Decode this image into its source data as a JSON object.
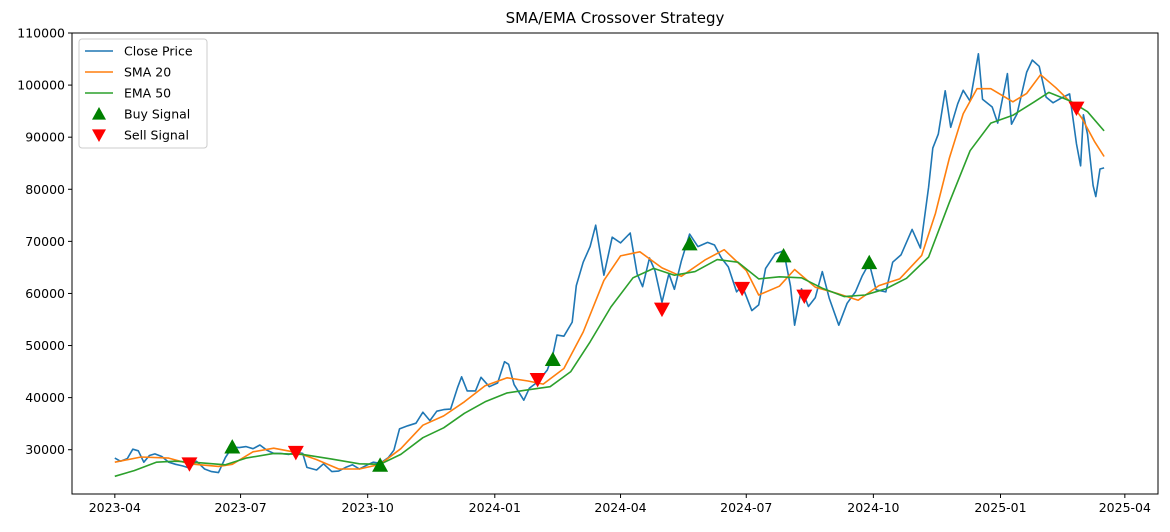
{
  "chart_data": {
    "type": "line",
    "title": "SMA/EMA Crossover Strategy",
    "xlabel": "",
    "ylabel": "",
    "x_range": [
      "2023-03-01",
      "2025-04-25"
    ],
    "ylim": [
      21500,
      110000
    ],
    "x_ticks": [
      "2023-04",
      "2023-07",
      "2023-10",
      "2024-01",
      "2024-04",
      "2024-07",
      "2024-10",
      "2025-01",
      "2025-04"
    ],
    "y_ticks": [
      30000,
      40000,
      50000,
      60000,
      70000,
      80000,
      90000,
      100000,
      110000
    ],
    "grid": false,
    "legend_position": "top-left",
    "legend": [
      "Close Price",
      "SMA 20",
      "EMA 50",
      "Buy Signal",
      "Sell Signal"
    ],
    "series": [
      {
        "name": "Close Price",
        "color": "#1f77b4",
        "points": [
          [
            "2023-04-01",
            28400
          ],
          [
            "2023-04-05",
            27800
          ],
          [
            "2023-04-10",
            28300
          ],
          [
            "2023-04-14",
            30100
          ],
          [
            "2023-04-18",
            29800
          ],
          [
            "2023-04-22",
            27600
          ],
          [
            "2023-04-26",
            28900
          ],
          [
            "2023-04-30",
            29200
          ],
          [
            "2023-05-05",
            28700
          ],
          [
            "2023-05-10",
            27600
          ],
          [
            "2023-05-15",
            27200
          ],
          [
            "2023-05-20",
            26900
          ],
          [
            "2023-05-25",
            26500
          ],
          [
            "2023-05-30",
            27800
          ],
          [
            "2023-06-05",
            26300
          ],
          [
            "2023-06-10",
            25800
          ],
          [
            "2023-06-15",
            25600
          ],
          [
            "2023-06-20",
            28500
          ],
          [
            "2023-06-25",
            30500
          ],
          [
            "2023-06-30",
            30400
          ],
          [
            "2023-07-05",
            30600
          ],
          [
            "2023-07-10",
            30200
          ],
          [
            "2023-07-15",
            30900
          ],
          [
            "2023-07-20",
            29900
          ],
          [
            "2023-07-25",
            29300
          ],
          [
            "2023-07-30",
            29300
          ],
          [
            "2023-08-05",
            29100
          ],
          [
            "2023-08-10",
            29500
          ],
          [
            "2023-08-15",
            29300
          ],
          [
            "2023-08-18",
            26600
          ],
          [
            "2023-08-25",
            26100
          ],
          [
            "2023-08-30",
            27300
          ],
          [
            "2023-09-05",
            25800
          ],
          [
            "2023-09-10",
            25900
          ],
          [
            "2023-09-15",
            26600
          ],
          [
            "2023-09-20",
            27100
          ],
          [
            "2023-09-25",
            26300
          ],
          [
            "2023-09-30",
            27000
          ],
          [
            "2023-10-05",
            27600
          ],
          [
            "2023-10-10",
            27400
          ],
          [
            "2023-10-16",
            28500
          ],
          [
            "2023-10-20",
            29900
          ],
          [
            "2023-10-24",
            34000
          ],
          [
            "2023-10-30",
            34600
          ],
          [
            "2023-11-05",
            35100
          ],
          [
            "2023-11-10",
            37200
          ],
          [
            "2023-11-15",
            35600
          ],
          [
            "2023-11-20",
            37400
          ],
          [
            "2023-11-25",
            37700
          ],
          [
            "2023-11-30",
            37800
          ],
          [
            "2023-12-05",
            41900
          ],
          [
            "2023-12-08",
            44000
          ],
          [
            "2023-12-12",
            41300
          ],
          [
            "2023-12-18",
            41300
          ],
          [
            "2023-12-22",
            43900
          ],
          [
            "2023-12-28",
            42100
          ],
          [
            "2024-01-03",
            42800
          ],
          [
            "2024-01-08",
            46900
          ],
          [
            "2024-01-11",
            46400
          ],
          [
            "2024-01-15",
            42500
          ],
          [
            "2024-01-22",
            39500
          ],
          [
            "2024-01-26",
            41800
          ],
          [
            "2024-02-01",
            43000
          ],
          [
            "2024-02-08",
            45300
          ],
          [
            "2024-02-12",
            48200
          ],
          [
            "2024-02-15",
            52000
          ],
          [
            "2024-02-20",
            51800
          ],
          [
            "2024-02-26",
            54500
          ],
          [
            "2024-02-29",
            61500
          ],
          [
            "2024-03-05",
            66000
          ],
          [
            "2024-03-10",
            69000
          ],
          [
            "2024-03-14",
            73100
          ],
          [
            "2024-03-20",
            63500
          ],
          [
            "2024-03-26",
            70800
          ],
          [
            "2024-04-01",
            69700
          ],
          [
            "2024-04-08",
            71600
          ],
          [
            "2024-04-13",
            63800
          ],
          [
            "2024-04-17",
            61300
          ],
          [
            "2024-04-22",
            66800
          ],
          [
            "2024-04-26",
            64300
          ],
          [
            "2024-05-01",
            58300
          ],
          [
            "2024-05-06",
            63800
          ],
          [
            "2024-05-10",
            60800
          ],
          [
            "2024-05-15",
            66200
          ],
          [
            "2024-05-21",
            71400
          ],
          [
            "2024-05-27",
            69000
          ],
          [
            "2024-06-03",
            69800
          ],
          [
            "2024-06-08",
            69300
          ],
          [
            "2024-06-13",
            66800
          ],
          [
            "2024-06-18",
            65100
          ],
          [
            "2024-06-24",
            60300
          ],
          [
            "2024-06-28",
            61500
          ],
          [
            "2024-07-05",
            56700
          ],
          [
            "2024-07-10",
            57800
          ],
          [
            "2024-07-15",
            64800
          ],
          [
            "2024-07-22",
            67600
          ],
          [
            "2024-07-28",
            68200
          ],
          [
            "2024-08-02",
            61400
          ],
          [
            "2024-08-05",
            53900
          ],
          [
            "2024-08-10",
            60900
          ],
          [
            "2024-08-15",
            57500
          ],
          [
            "2024-08-20",
            59200
          ],
          [
            "2024-08-25",
            64200
          ],
          [
            "2024-08-30",
            59100
          ],
          [
            "2024-09-06",
            53900
          ],
          [
            "2024-09-12",
            58100
          ],
          [
            "2024-09-18",
            60300
          ],
          [
            "2024-09-23",
            63400
          ],
          [
            "2024-09-28",
            65800
          ],
          [
            "2024-10-03",
            60700
          ],
          [
            "2024-10-10",
            60300
          ],
          [
            "2024-10-15",
            66000
          ],
          [
            "2024-10-21",
            67400
          ],
          [
            "2024-10-29",
            72300
          ],
          [
            "2024-11-04",
            68700
          ],
          [
            "2024-11-10",
            80400
          ],
          [
            "2024-11-13",
            87900
          ],
          [
            "2024-11-17",
            90600
          ],
          [
            "2024-11-22",
            98900
          ],
          [
            "2024-11-26",
            91900
          ],
          [
            "2024-12-01",
            96400
          ],
          [
            "2024-12-05",
            99000
          ],
          [
            "2024-12-10",
            96900
          ],
          [
            "2024-12-16",
            106000
          ],
          [
            "2024-12-19",
            97300
          ],
          [
            "2024-12-26",
            95800
          ],
          [
            "2024-12-30",
            92700
          ],
          [
            "2025-01-06",
            102200
          ],
          [
            "2025-01-09",
            92500
          ],
          [
            "2025-01-13",
            94500
          ],
          [
            "2025-01-20",
            102500
          ],
          [
            "2025-01-24",
            104800
          ],
          [
            "2025-01-29",
            103600
          ],
          [
            "2025-02-03",
            97700
          ],
          [
            "2025-02-08",
            96600
          ],
          [
            "2025-02-14",
            97500
          ],
          [
            "2025-02-20",
            98300
          ],
          [
            "2025-02-25",
            88700
          ],
          [
            "2025-02-28",
            84500
          ],
          [
            "2025-03-02",
            94300
          ],
          [
            "2025-03-05",
            90600
          ],
          [
            "2025-03-09",
            80700
          ],
          [
            "2025-03-11",
            78600
          ],
          [
            "2025-03-14",
            83900
          ],
          [
            "2025-03-17",
            84100
          ]
        ]
      },
      {
        "name": "SMA 20",
        "color": "#ff7f0e",
        "points": [
          [
            "2023-04-01",
            27600
          ],
          [
            "2023-04-20",
            28600
          ],
          [
            "2023-05-10",
            28400
          ],
          [
            "2023-05-25",
            27300
          ],
          [
            "2023-06-15",
            26800
          ],
          [
            "2023-06-25",
            27200
          ],
          [
            "2023-07-10",
            29600
          ],
          [
            "2023-07-25",
            30300
          ],
          [
            "2023-08-10",
            29500
          ],
          [
            "2023-08-25",
            28100
          ],
          [
            "2023-09-10",
            26300
          ],
          [
            "2023-09-25",
            26300
          ],
          [
            "2023-10-10",
            27200
          ],
          [
            "2023-10-25",
            30200
          ],
          [
            "2023-11-10",
            34700
          ],
          [
            "2023-11-25",
            36500
          ],
          [
            "2023-12-10",
            39200
          ],
          [
            "2023-12-25",
            42300
          ],
          [
            "2024-01-10",
            43800
          ],
          [
            "2024-01-25",
            43200
          ],
          [
            "2024-02-05",
            42600
          ],
          [
            "2024-02-20",
            45600
          ],
          [
            "2024-03-05",
            52600
          ],
          [
            "2024-03-20",
            62500
          ],
          [
            "2024-04-01",
            67200
          ],
          [
            "2024-04-15",
            68000
          ],
          [
            "2024-05-01",
            64900
          ],
          [
            "2024-05-15",
            63300
          ],
          [
            "2024-06-01",
            66400
          ],
          [
            "2024-06-15",
            68400
          ],
          [
            "2024-07-01",
            64400
          ],
          [
            "2024-07-10",
            59700
          ],
          [
            "2024-07-25",
            61400
          ],
          [
            "2024-08-05",
            64600
          ],
          [
            "2024-08-20",
            61200
          ],
          [
            "2024-09-05",
            60000
          ],
          [
            "2024-09-20",
            58700
          ],
          [
            "2024-10-05",
            61500
          ],
          [
            "2024-10-20",
            62800
          ],
          [
            "2024-11-05",
            67300
          ],
          [
            "2024-11-15",
            75400
          ],
          [
            "2024-11-25",
            86000
          ],
          [
            "2024-12-05",
            94500
          ],
          [
            "2024-12-15",
            99300
          ],
          [
            "2024-12-25",
            99300
          ],
          [
            "2025-01-10",
            96800
          ],
          [
            "2025-01-20",
            98400
          ],
          [
            "2025-01-30",
            102000
          ],
          [
            "2025-02-10",
            99500
          ],
          [
            "2025-02-20",
            96900
          ],
          [
            "2025-03-01",
            93600
          ],
          [
            "2025-03-10",
            89200
          ],
          [
            "2025-03-17",
            86300
          ]
        ]
      },
      {
        "name": "EMA 50",
        "color": "#2ca02c",
        "points": [
          [
            "2023-04-01",
            24900
          ],
          [
            "2023-04-15",
            26000
          ],
          [
            "2023-05-01",
            27600
          ],
          [
            "2023-05-15",
            27800
          ],
          [
            "2023-06-01",
            27500
          ],
          [
            "2023-06-20",
            27100
          ],
          [
            "2023-07-05",
            28400
          ],
          [
            "2023-07-25",
            29300
          ],
          [
            "2023-08-15",
            29100
          ],
          [
            "2023-09-05",
            28200
          ],
          [
            "2023-09-25",
            27300
          ],
          [
            "2023-10-10",
            27200
          ],
          [
            "2023-10-25",
            29100
          ],
          [
            "2023-11-10",
            32300
          ],
          [
            "2023-11-25",
            34200
          ],
          [
            "2023-12-10",
            37000
          ],
          [
            "2023-12-25",
            39200
          ],
          [
            "2024-01-10",
            40900
          ],
          [
            "2024-01-25",
            41500
          ],
          [
            "2024-02-10",
            42100
          ],
          [
            "2024-02-25",
            45000
          ],
          [
            "2024-03-10",
            50700
          ],
          [
            "2024-03-25",
            57400
          ],
          [
            "2024-04-10",
            63000
          ],
          [
            "2024-04-25",
            64800
          ],
          [
            "2024-05-10",
            63500
          ],
          [
            "2024-05-25",
            64200
          ],
          [
            "2024-06-10",
            66500
          ],
          [
            "2024-06-25",
            66000
          ],
          [
            "2024-07-10",
            62800
          ],
          [
            "2024-07-25",
            63200
          ],
          [
            "2024-08-10",
            63000
          ],
          [
            "2024-08-25",
            61000
          ],
          [
            "2024-09-10",
            59400
          ],
          [
            "2024-09-25",
            59700
          ],
          [
            "2024-10-10",
            60900
          ],
          [
            "2024-10-25",
            62900
          ],
          [
            "2024-11-10",
            67000
          ],
          [
            "2024-11-25",
            77500
          ],
          [
            "2024-12-10",
            87400
          ],
          [
            "2024-12-25",
            92700
          ],
          [
            "2025-01-10",
            94200
          ],
          [
            "2025-01-25",
            96700
          ],
          [
            "2025-02-05",
            98600
          ],
          [
            "2025-02-20",
            97000
          ],
          [
            "2025-03-05",
            94900
          ],
          [
            "2025-03-17",
            91200
          ]
        ]
      }
    ],
    "buy_signals": [
      [
        "2023-06-25",
        30500
      ],
      [
        "2023-10-10",
        27000
      ],
      [
        "2024-02-12",
        47300
      ],
      [
        "2024-05-21",
        69500
      ],
      [
        "2024-07-28",
        67200
      ],
      [
        "2024-09-28",
        65900
      ]
    ],
    "sell_signals": [
      [
        "2023-05-25",
        27300
      ],
      [
        "2023-08-10",
        29500
      ],
      [
        "2024-02-01",
        43500
      ],
      [
        "2024-05-01",
        57000
      ],
      [
        "2024-06-28",
        61000
      ],
      [
        "2024-08-12",
        59500
      ],
      [
        "2025-02-25",
        95600
      ]
    ],
    "marker_colors": {
      "buy": "#008000",
      "sell": "#ff0000"
    }
  }
}
